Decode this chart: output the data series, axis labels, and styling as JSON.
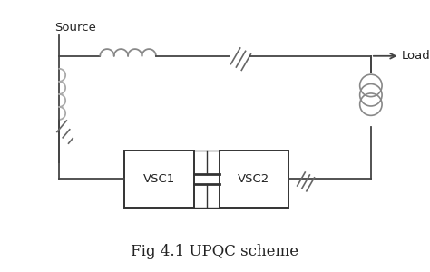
{
  "title": "Fig 4.1 UPQC scheme",
  "title_fontsize": 12,
  "bg_color": "#ffffff",
  "line_color": "#444444",
  "source_label": "Source",
  "load_label": "Load",
  "vsc1_label": "VSC1",
  "vsc2_label": "VSC2",
  "figsize": [
    4.74,
    3.0
  ],
  "dpi": 100,
  "xlim": [
    0,
    10
  ],
  "ylim": [
    0,
    6.5
  ]
}
